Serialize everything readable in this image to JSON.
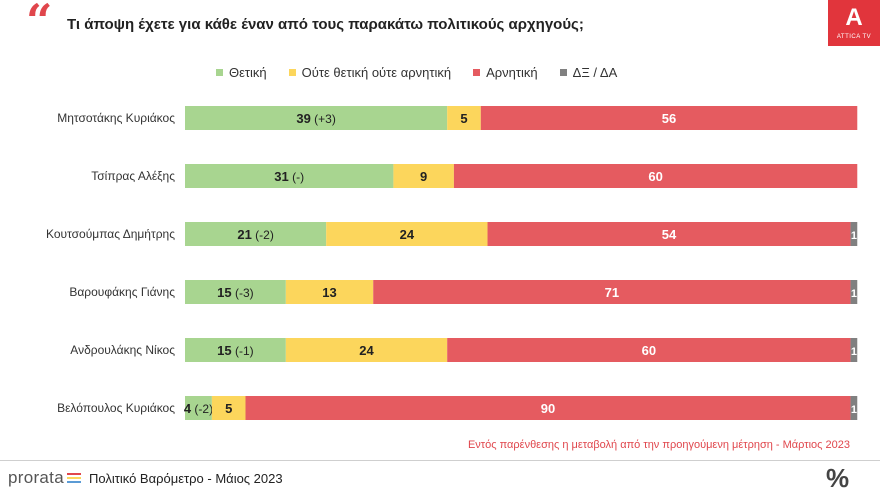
{
  "header": {
    "quote_glyph": "“",
    "question": "Τι άποψη έχετε για κάθε έναν από τους παρακάτω πολιτικούς αρχηγούς;",
    "logo_mark": "A",
    "logo_text": "ATTICA TV"
  },
  "colors": {
    "positive": "#a8d590",
    "neutral": "#fcd65c",
    "negative": "#e55b60",
    "dk": "#808080",
    "accent": "#e0464c"
  },
  "chart_data": {
    "type": "bar",
    "orientation": "horizontal",
    "stacked": true,
    "legend_position": "top",
    "categories": [
      "Μητσοτάκης Κυριάκος",
      "Τσίπρας Αλέξης",
      "Κουτσούμπας Δημήτρης",
      "Βαρουφάκης Γιάνης",
      "Ανδρουλάκης Νίκος",
      "Βελόπουλος Κυριάκος"
    ],
    "series": [
      {
        "name": "Θετική",
        "values": [
          39,
          31,
          21,
          15,
          15,
          4
        ],
        "change_labels": [
          "(+3)",
          "(-)",
          "(-2)",
          "(-3)",
          "(-1)",
          "(-2)"
        ]
      },
      {
        "name": "Ούτε θετική ούτε αρνητική",
        "values": [
          5,
          9,
          24,
          13,
          24,
          5
        ]
      },
      {
        "name": "Αρνητική",
        "values": [
          56,
          60,
          54,
          71,
          60,
          90
        ]
      },
      {
        "name": "ΔΞ / ΔΑ",
        "values": [
          0,
          0,
          1,
          1,
          1,
          1
        ]
      }
    ],
    "xlim": [
      0,
      101
    ]
  },
  "footnote": "Εντός παρένθεσης η μεταβολή από την προηγούμενη μέτρηση - Μάρτιος 2023",
  "footer": {
    "brand": "prorata",
    "brand_bar_colors": [
      "#e0464c",
      "#fcd65c",
      "#5b9bd5"
    ],
    "title": "Πολιτικό Βαρόμετρο - Μάιος 2023",
    "percent_glyph": "%"
  }
}
